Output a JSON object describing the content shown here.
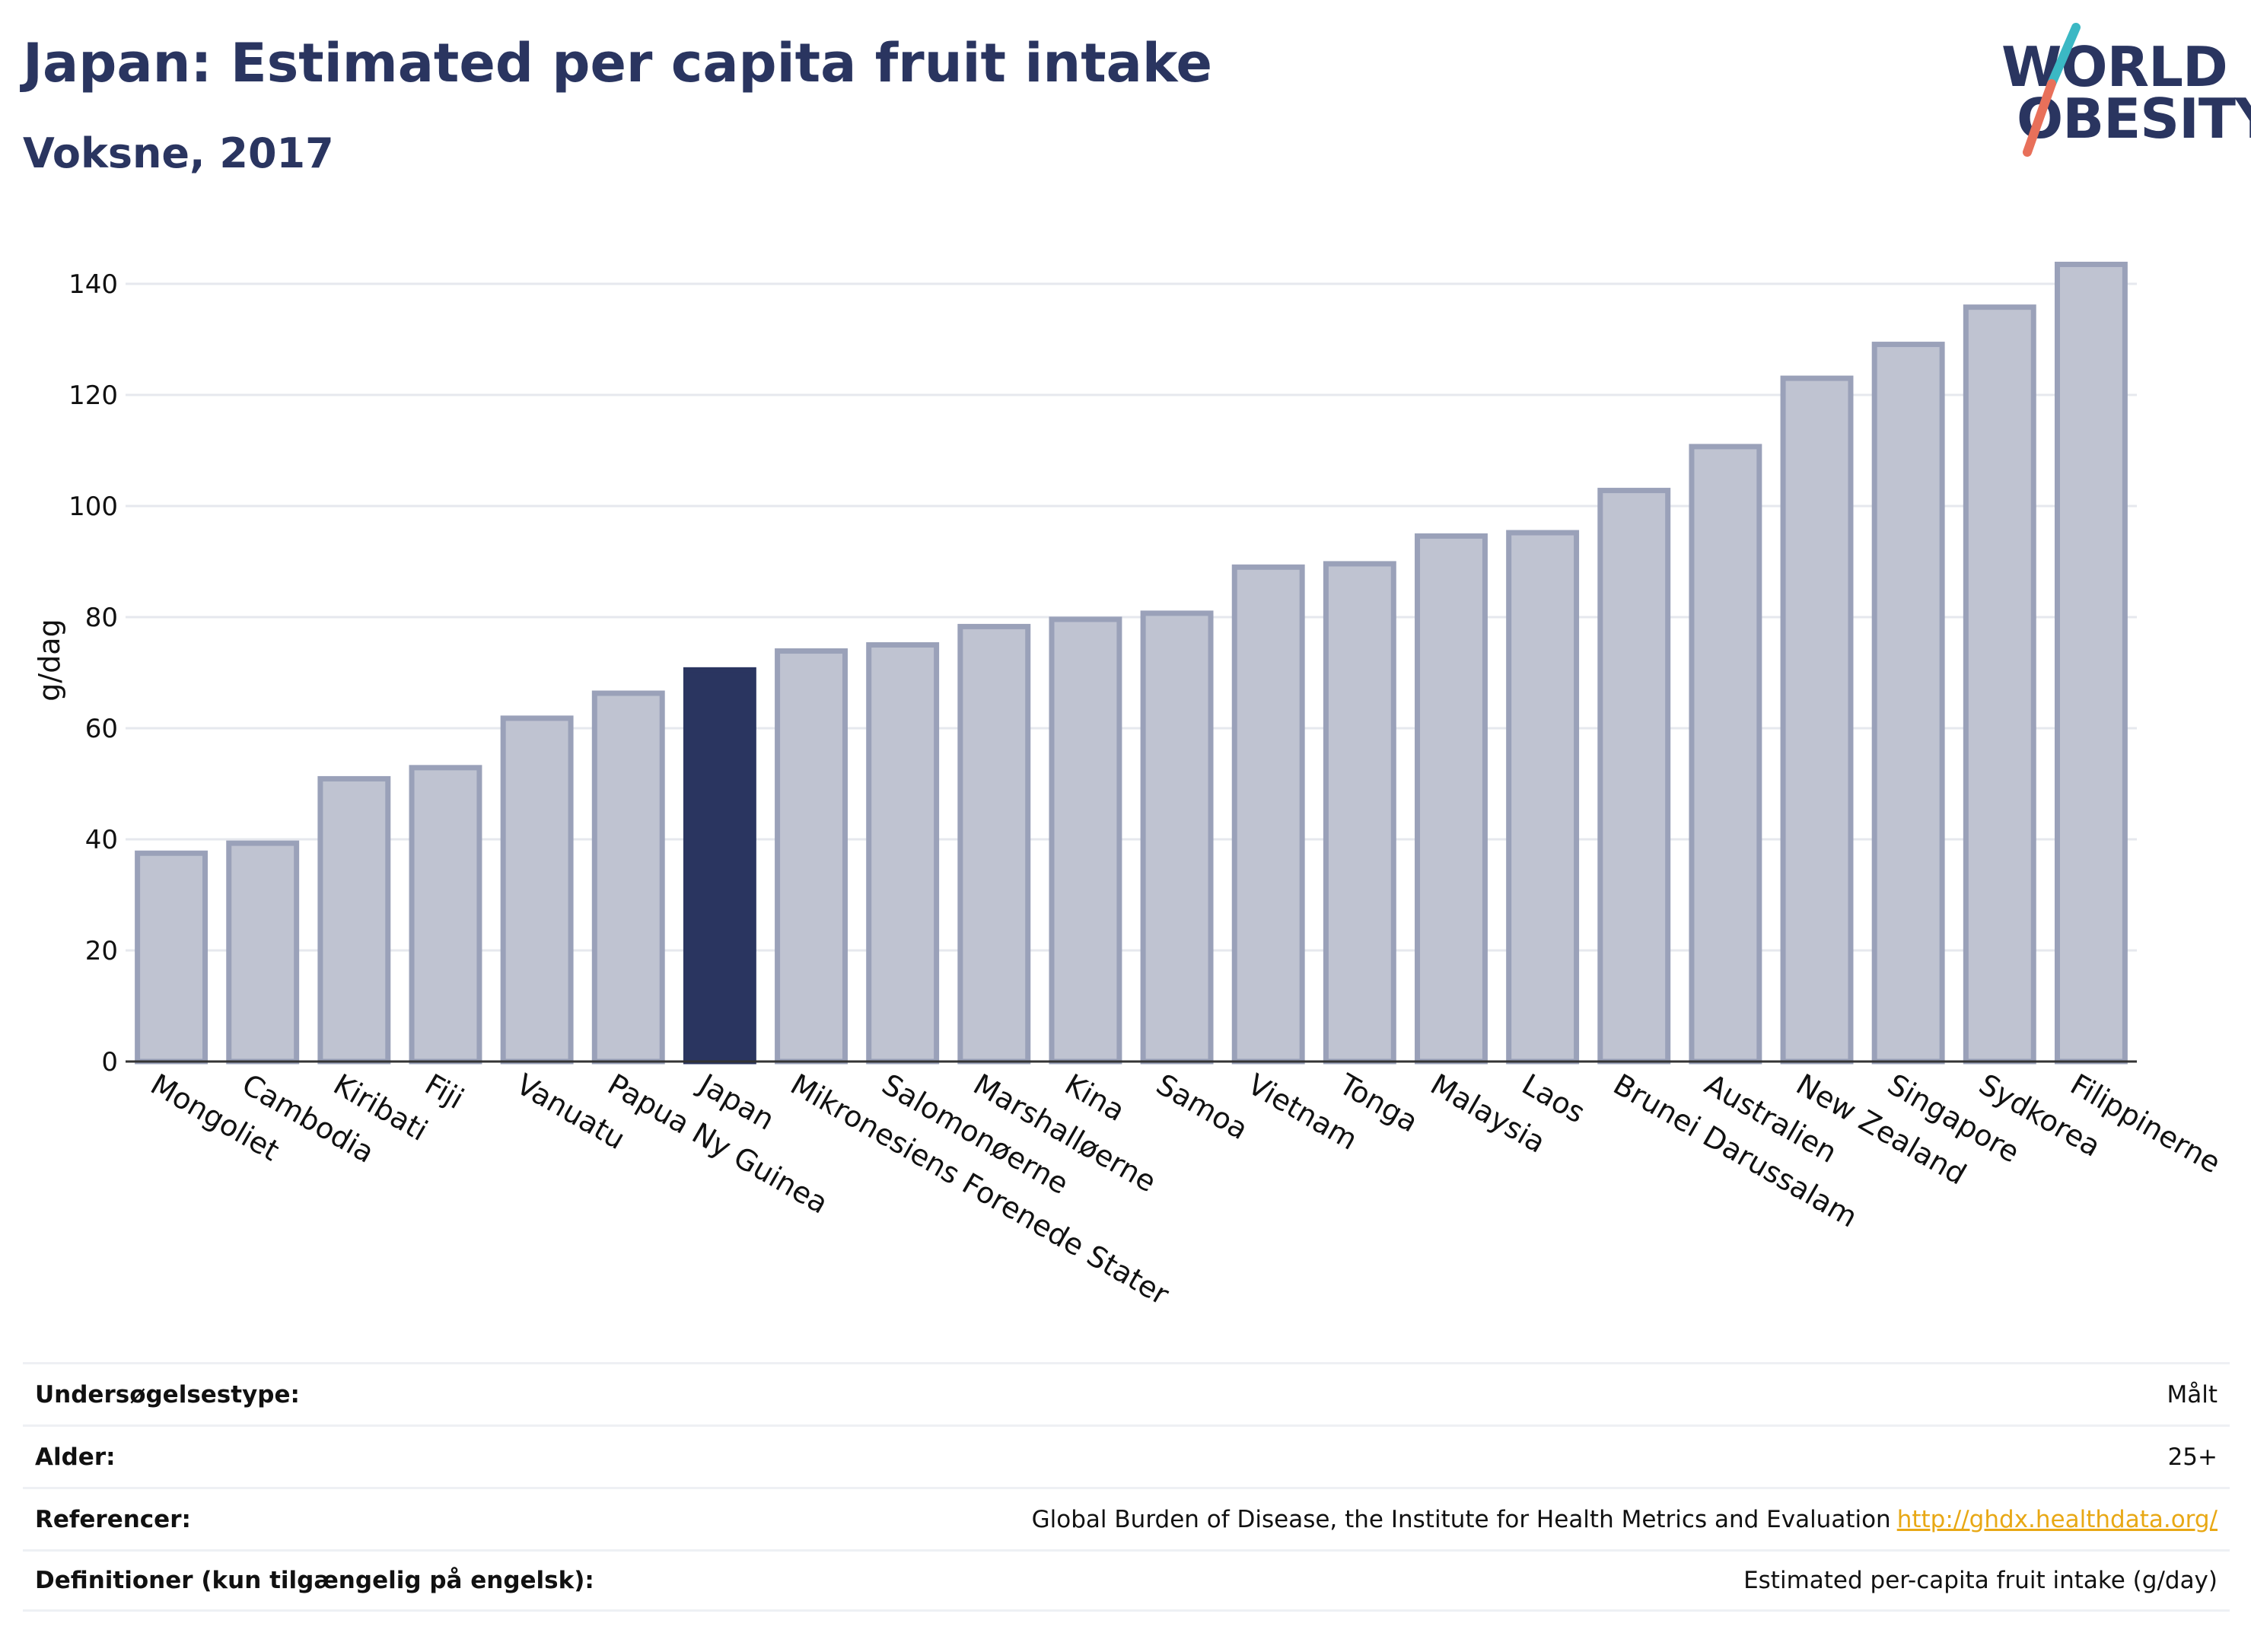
{
  "header": {
    "title": "Japan: Estimated per capita fruit intake",
    "subtitle": "Voksne, 2017"
  },
  "logo": {
    "line1": "WORLD",
    "line2": "OBESITY",
    "colors": {
      "text": "#2a3560",
      "slash_top": "#3bb8c4",
      "slash_bottom": "#e8705a"
    }
  },
  "chart_data": {
    "type": "bar",
    "title": "",
    "xlabel": "",
    "ylabel": "g/dag",
    "ylim": [
      0,
      150
    ],
    "yticks": [
      0,
      20,
      40,
      60,
      80,
      100,
      120,
      140
    ],
    "grid": true,
    "highlight": "Japan",
    "colors": {
      "bar": "#bfc3d1",
      "bar_border": "#9aa1b9",
      "highlight": "#2a3560"
    },
    "categories": [
      "Mongoliet",
      "Cambodia",
      "Kiribati",
      "Fiji",
      "Vanuatu",
      "Papua Ny Guinea",
      "Japan",
      "Mikronesiens Forenede Stater",
      "Salomonøerne",
      "Marshalløerne",
      "Kina",
      "Samoa",
      "Vietnam",
      "Tonga",
      "Malaysia",
      "Laos",
      "Brunei Darussalam",
      "Australien",
      "New Zealand",
      "Singapore",
      "Sydkorea",
      "Filippinerne"
    ],
    "values": [
      37.5,
      39.3,
      50.9,
      52.9,
      61.8,
      66.3,
      70.5,
      73.9,
      75.0,
      78.3,
      79.6,
      80.7,
      89.0,
      89.6,
      94.6,
      95.2,
      102.8,
      110.7,
      123.0,
      129.1,
      135.8,
      143.5
    ]
  },
  "meta": {
    "rows": [
      {
        "label": "Undersøgelsestype:",
        "value": "Målt"
      },
      {
        "label": "Alder:",
        "value": "25+"
      },
      {
        "label": "Referencer:",
        "value": "Global Burden of Disease, the Institute for Health Metrics and Evaluation",
        "link": "http://ghdx.healthdata.org/"
      },
      {
        "label": "Definitioner (kun tilgængelig på engelsk):",
        "value": "Estimated per-capita fruit intake (g/day)"
      }
    ]
  }
}
